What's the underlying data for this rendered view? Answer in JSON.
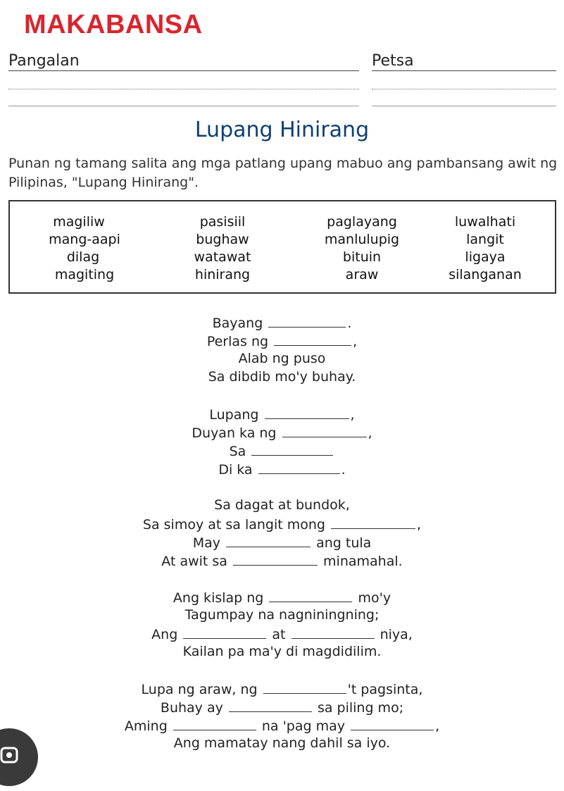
{
  "header": {
    "subject": "MAKABANSA",
    "name_label": "Pangalan",
    "date_label": "Petsa"
  },
  "title": "Lupang Hinirang",
  "instructions": "Punan ng tamang salita ang mga patlang upang mabuo ang pambansang awit ng Pilipinas, \"Lupang Hinirang\".",
  "word_bank": [
    [
      "magiliw",
      "pasisiil",
      "paglayang",
      "luwalhati"
    ],
    [
      "mang-aapi",
      "bughaw",
      "manlulupig",
      "langit"
    ],
    [
      "dilag",
      "watawat",
      "bituin",
      "ligaya"
    ],
    [
      "magiting",
      "hinirang",
      "araw",
      "silanganan"
    ]
  ],
  "lyrics": {
    "l1_a": "Bayang",
    "l1_b": ".",
    "l2_a": "Perlas ng",
    "l2_b": ",",
    "l3": "Alab ng puso",
    "l4": "Sa dibdib mo'y buhay.",
    "l5_a": "Lupang",
    "l5_b": ",",
    "l6_a": "Duyan ka ng",
    "l6_b": ",",
    "l7_a": "Sa",
    "l8_a": "Di ka",
    "l8_b": ".",
    "l9": "Sa dagat at bundok,",
    "l10_a": "Sa simoy at sa langit mong",
    "l10_b": ",",
    "l11_a": "May",
    "l11_b": "ang tula",
    "l12_a": "At awit sa",
    "l12_b": "minamahal.",
    "l13_a": "Ang kislap ng",
    "l13_b": "mo'y",
    "l14": "Tagumpay na nagniningning;",
    "l15_a": "Ang",
    "l15_b": "at",
    "l15_c": "niya,",
    "l16": "Kailan pa ma'y di magdidilim.",
    "l17_a": "Lupa ng araw, ng",
    "l17_b": "'t pagsinta,",
    "l18_a": "Buhay ay",
    "l18_b": "sa piling mo;",
    "l19_a": "Aming",
    "l19_b": "na 'pag may",
    "l19_c": ",",
    "l20": "Ang mamatay nang dahil sa iyo."
  }
}
